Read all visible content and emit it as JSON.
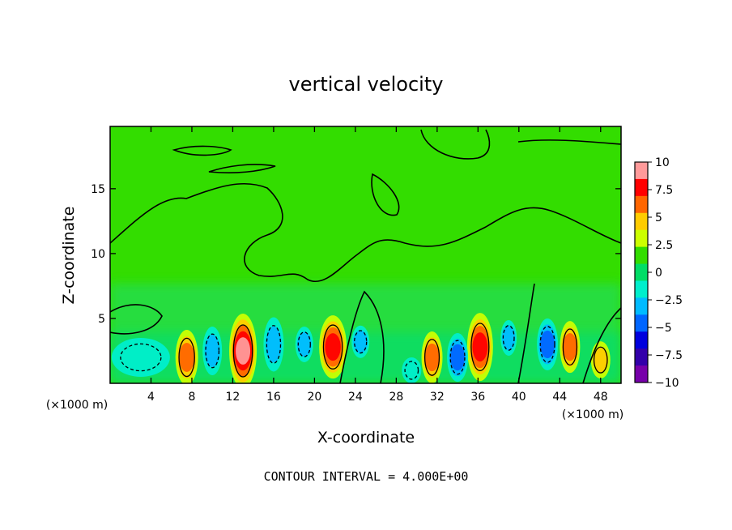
{
  "chart_data": {
    "type": "heatmap",
    "title": "vertical velocity",
    "xlabel": "X-coordinate",
    "ylabel": "Z-coordinate",
    "x_unit": "(×1000 m)",
    "x_unit_right": "(×1000 m)",
    "xlim": [
      0,
      50
    ],
    "ylim": [
      0,
      19.8
    ],
    "x_ticks": [
      4,
      8,
      12,
      16,
      20,
      24,
      28,
      32,
      36,
      40,
      44,
      48
    ],
    "y_ticks": [
      5,
      10,
      15
    ],
    "contour_interval_text": "CONTOUR INTERVAL = 4.000E+00",
    "colorbar": {
      "min": -10,
      "max": 10,
      "labels": [
        "10",
        "7.5",
        "5",
        "2.5",
        "0",
        "-2.5",
        "-5",
        "-7.5",
        "-10"
      ],
      "colors": [
        "#ff9a9a",
        "#ff0000",
        "#ff6600",
        "#ffcc00",
        "#ccff00",
        "#33dd00",
        "#00dd66",
        "#00eecc",
        "#00bbff",
        "#0066ff",
        "#0000dd",
        "#3300aa",
        "#7700aa"
      ]
    },
    "features": [
      {
        "x": 7.5,
        "z": 2.0,
        "w": 16,
        "h": 56,
        "value": 6.5
      },
      {
        "x": 13.0,
        "z": 2.5,
        "w": 22,
        "h": 80,
        "value": 9.5
      },
      {
        "x": 21.8,
        "z": 2.8,
        "w": 22,
        "h": 66,
        "value": 8.5
      },
      {
        "x": 31.5,
        "z": 2.0,
        "w": 14,
        "h": 52,
        "value": 6.5
      },
      {
        "x": 36.2,
        "z": 2.8,
        "w": 20,
        "h": 72,
        "value": 8.0
      },
      {
        "x": 45.0,
        "z": 2.8,
        "w": 13,
        "h": 52,
        "value": 6.0
      },
      {
        "x": 48.0,
        "z": 1.8,
        "w": 12,
        "h": 34,
        "value": 4.0
      },
      {
        "x": 10.0,
        "z": 2.5,
        "w": 12,
        "h": 48,
        "value": -3.5
      },
      {
        "x": 16.0,
        "z": 3.0,
        "w": 13,
        "h": 55,
        "value": -4.5
      },
      {
        "x": 19.0,
        "z": 3.0,
        "w": 10,
        "h": 32,
        "value": -3.5
      },
      {
        "x": 24.5,
        "z": 3.2,
        "w": 10,
        "h": 28,
        "value": -4.5
      },
      {
        "x": 34.0,
        "z": 2.0,
        "w": 14,
        "h": 48,
        "value": -5.0
      },
      {
        "x": 42.8,
        "z": 3.0,
        "w": 14,
        "h": 52,
        "value": -5.5
      },
      {
        "x": 29.5,
        "z": 1.0,
        "w": 12,
        "h": 20,
        "value": -2.5
      },
      {
        "x": 3.0,
        "z": 2.0,
        "w": 60,
        "h": 36,
        "value": -2.5
      },
      {
        "x": 39.0,
        "z": 3.5,
        "w": 8,
        "h": 32,
        "value": -3.5
      }
    ]
  }
}
